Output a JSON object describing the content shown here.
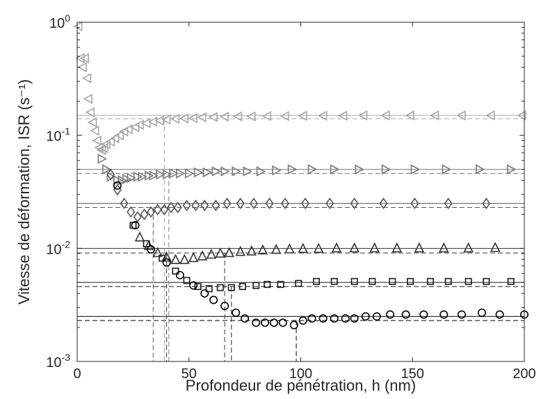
{
  "chart_data": {
    "type": "scatter",
    "title": "",
    "xlabel": "Profondeur de pénétration, h (nm)",
    "ylabel": "Vitesse de déformation, ISR (s⁻¹)",
    "xlim": [
      0,
      200
    ],
    "ylim": [
      0.001,
      1
    ],
    "yscale": "log",
    "grid": false,
    "legend": "none",
    "x_ticks": [
      0,
      50,
      100,
      150,
      200
    ],
    "x_tick_labels": [
      "0",
      "50",
      "100",
      "150",
      "200"
    ],
    "y_ticks": [
      0.001,
      0.01,
      0.1,
      1
    ],
    "y_tick_labels": [
      {
        "base": "10",
        "exp": "-3"
      },
      {
        "base": "10",
        "exp": "-2"
      },
      {
        "base": "10",
        "exp": "-1"
      },
      {
        "base": "10",
        "exp": "0"
      }
    ],
    "series": [
      {
        "marker": "circle",
        "color": "#000000",
        "target_rate": 0.0025,
        "steady_rate": 0.0023,
        "transition_depths": [
          98
        ],
        "points": [
          [
            18,
            0.036
          ],
          [
            26,
            0.016
          ],
          [
            33,
            0.0098
          ],
          [
            40,
            0.0075
          ],
          [
            46,
            0.0058
          ],
          [
            52,
            0.0047
          ],
          [
            57,
            0.004
          ],
          [
            61,
            0.0035
          ],
          [
            66,
            0.0031
          ],
          [
            71,
            0.0027
          ],
          [
            75,
            0.0024
          ],
          [
            80,
            0.0022
          ],
          [
            84,
            0.0022
          ],
          [
            88,
            0.0022
          ],
          [
            92,
            0.0022
          ],
          [
            97,
            0.0021
          ],
          [
            101,
            0.0023
          ],
          [
            105,
            0.0024
          ],
          [
            110,
            0.0024
          ],
          [
            115,
            0.0024
          ],
          [
            120,
            0.0024
          ],
          [
            124,
            0.0024
          ],
          [
            129,
            0.0025
          ],
          [
            134,
            0.0025
          ],
          [
            140,
            0.0026
          ],
          [
            147,
            0.0026
          ],
          [
            155,
            0.0026
          ],
          [
            164,
            0.0026
          ],
          [
            172,
            0.0026
          ],
          [
            181,
            0.0027
          ],
          [
            189,
            0.0026
          ],
          [
            200,
            0.0026
          ]
        ]
      },
      {
        "marker": "square",
        "color": "#1a1a1a",
        "target_rate": 0.005,
        "steady_rate": 0.0046,
        "transition_depths": [
          69
        ],
        "points": [
          [
            25,
            0.016
          ],
          [
            31,
            0.011
          ],
          [
            38,
            0.0082
          ],
          [
            44,
            0.0063
          ],
          [
            49,
            0.0052
          ],
          [
            54,
            0.0046
          ],
          [
            59,
            0.0044
          ],
          [
            64,
            0.0045
          ],
          [
            69,
            0.0045
          ],
          [
            74,
            0.0046
          ],
          [
            80,
            0.0047
          ],
          [
            85,
            0.0048
          ],
          [
            91,
            0.0048
          ],
          [
            99,
            0.0049
          ],
          [
            107,
            0.0051
          ],
          [
            115,
            0.0051
          ],
          [
            124,
            0.0051
          ],
          [
            132,
            0.0051
          ],
          [
            141,
            0.0051
          ],
          [
            149,
            0.0051
          ],
          [
            158,
            0.0051
          ],
          [
            166,
            0.0051
          ],
          [
            175,
            0.0051
          ],
          [
            183,
            0.0051
          ],
          [
            194,
            0.0051
          ]
        ]
      },
      {
        "marker": "triangle-up",
        "color": "#333333",
        "target_rate": 0.01,
        "steady_rate": 0.0091,
        "transition_depths": [
          40,
          66
        ],
        "points": [
          [
            28,
            0.0125
          ],
          [
            32,
            0.0105
          ],
          [
            36,
            0.0091
          ],
          [
            40,
            0.0083
          ],
          [
            44,
            0.0079
          ],
          [
            48,
            0.0079
          ],
          [
            52,
            0.0082
          ],
          [
            56,
            0.0085
          ],
          [
            60,
            0.0088
          ],
          [
            64,
            0.009
          ],
          [
            68,
            0.0091
          ],
          [
            73,
            0.0093
          ],
          [
            78,
            0.0094
          ],
          [
            83,
            0.0096
          ],
          [
            89,
            0.0097
          ],
          [
            95,
            0.0098
          ],
          [
            101,
            0.0099
          ],
          [
            108,
            0.0099
          ],
          [
            116,
            0.01
          ],
          [
            124,
            0.01
          ],
          [
            133,
            0.01
          ],
          [
            143,
            0.01
          ],
          [
            153,
            0.01
          ],
          [
            164,
            0.01
          ],
          [
            175,
            0.01
          ],
          [
            187,
            0.0101
          ]
        ]
      },
      {
        "marker": "diamond",
        "color": "#555555",
        "target_rate": 0.025,
        "steady_rate": 0.023,
        "transition_depths": [
          34
        ],
        "points": [
          [
            15,
            0.045
          ],
          [
            18,
            0.033
          ],
          [
            21,
            0.025
          ],
          [
            24,
            0.021
          ],
          [
            27,
            0.019
          ],
          [
            30,
            0.02
          ],
          [
            33,
            0.021
          ],
          [
            36,
            0.022
          ],
          [
            39,
            0.022
          ],
          [
            42,
            0.023
          ],
          [
            45,
            0.023
          ],
          [
            49,
            0.024
          ],
          [
            53,
            0.024
          ],
          [
            57,
            0.024
          ],
          [
            62,
            0.024
          ],
          [
            67,
            0.025
          ],
          [
            73,
            0.025
          ],
          [
            79,
            0.025
          ],
          [
            86,
            0.025
          ],
          [
            93,
            0.025
          ],
          [
            102,
            0.025
          ],
          [
            113,
            0.025
          ],
          [
            124,
            0.025
          ],
          [
            137,
            0.025
          ],
          [
            151,
            0.025
          ],
          [
            166,
            0.025
          ],
          [
            183,
            0.025
          ]
        ]
      },
      {
        "marker": "triangle-right",
        "color": "#7a7a7a",
        "target_rate": 0.05,
        "steady_rate": 0.046,
        "transition_depths": [
          41
        ],
        "points": [
          [
            11,
            0.062
          ],
          [
            13,
            0.05
          ],
          [
            15,
            0.043
          ],
          [
            18,
            0.04
          ],
          [
            20,
            0.04
          ],
          [
            22,
            0.041
          ],
          [
            24,
            0.042
          ],
          [
            27,
            0.043
          ],
          [
            29,
            0.043
          ],
          [
            32,
            0.044
          ],
          [
            34,
            0.044
          ],
          [
            37,
            0.045
          ],
          [
            40,
            0.045
          ],
          [
            43,
            0.046
          ],
          [
            46,
            0.046
          ],
          [
            50,
            0.046
          ],
          [
            54,
            0.047
          ],
          [
            58,
            0.047
          ],
          [
            62,
            0.048
          ],
          [
            66,
            0.048
          ],
          [
            71,
            0.048
          ],
          [
            76,
            0.048
          ],
          [
            82,
            0.048
          ],
          [
            89,
            0.049
          ],
          [
            96,
            0.05
          ],
          [
            105,
            0.05
          ],
          [
            115,
            0.05
          ],
          [
            126,
            0.05
          ],
          [
            138,
            0.05
          ],
          [
            151,
            0.05
          ],
          [
            165,
            0.05
          ],
          [
            180,
            0.05
          ],
          [
            194,
            0.05
          ]
        ]
      },
      {
        "marker": "triangle-left",
        "color": "#a6a6a6",
        "target_rate": 0.15,
        "steady_rate": 0.14,
        "transition_depths": [
          39
        ],
        "points": [
          [
            0.5,
            0.92
          ],
          [
            1.5,
            0.48
          ],
          [
            2.5,
            0.4
          ],
          [
            3.5,
            0.48
          ],
          [
            4.5,
            0.32
          ],
          [
            5,
            0.21
          ],
          [
            6,
            0.16
          ],
          [
            7,
            0.13
          ],
          [
            8,
            0.11
          ],
          [
            9,
            0.09
          ],
          [
            10,
            0.078
          ],
          [
            11,
            0.074
          ],
          [
            12,
            0.077
          ],
          [
            13,
            0.083
          ],
          [
            15,
            0.088
          ],
          [
            17,
            0.094
          ],
          [
            19,
            0.1
          ],
          [
            21,
            0.108
          ],
          [
            23,
            0.113
          ],
          [
            26,
            0.118
          ],
          [
            28,
            0.124
          ],
          [
            31,
            0.128
          ],
          [
            34,
            0.132
          ],
          [
            37,
            0.135
          ],
          [
            40,
            0.138
          ],
          [
            44,
            0.14
          ],
          [
            48,
            0.141
          ],
          [
            52,
            0.142
          ],
          [
            56,
            0.144
          ],
          [
            61,
            0.145
          ],
          [
            66,
            0.146
          ],
          [
            72,
            0.147
          ],
          [
            78,
            0.147
          ],
          [
            85,
            0.148
          ],
          [
            93,
            0.148
          ],
          [
            101,
            0.149
          ],
          [
            110,
            0.149
          ],
          [
            119,
            0.149
          ],
          [
            128,
            0.15
          ],
          [
            138,
            0.15
          ],
          [
            149,
            0.15
          ],
          [
            160,
            0.15
          ],
          [
            172,
            0.15
          ],
          [
            185,
            0.15
          ],
          [
            199,
            0.15
          ]
        ]
      }
    ]
  }
}
